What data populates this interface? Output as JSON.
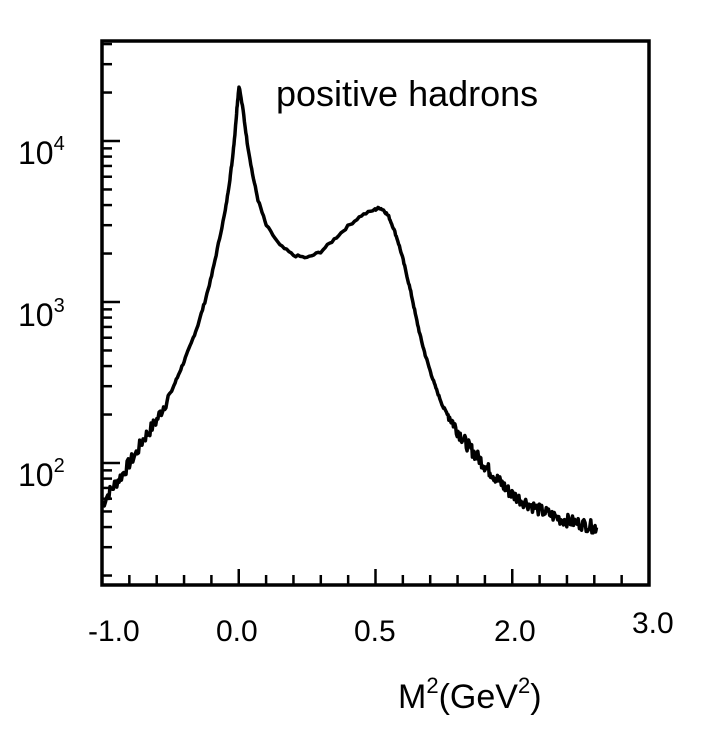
{
  "chart_data": {
    "type": "line",
    "annotation": "positive hadrons",
    "xlabel": {
      "base": "M",
      "sup1": "2",
      "mid": "(GeV",
      "sup2": "2",
      "end": ")"
    },
    "y_scale": "log",
    "ylim": [
      30,
      40000
    ],
    "x_tick_labels": [
      "-1.0",
      "0.0",
      "0.5",
      "2.0",
      "3.0"
    ],
    "y_tick_labels": [
      {
        "base": "10",
        "exp": "4",
        "value": 10000
      },
      {
        "base": "10",
        "exp": "3",
        "value": 1000
      },
      {
        "base": "10",
        "exp": "2",
        "value": 100
      }
    ],
    "series": [
      {
        "points": [
          [
            -1.0,
            55
          ],
          [
            -0.95,
            65
          ],
          [
            -0.9,
            75
          ],
          [
            -0.85,
            85
          ],
          [
            -0.8,
            100
          ],
          [
            -0.75,
            115
          ],
          [
            -0.7,
            140
          ],
          [
            -0.65,
            160
          ],
          [
            -0.6,
            185
          ],
          [
            -0.55,
            225
          ],
          [
            -0.5,
            270
          ],
          [
            -0.45,
            340
          ],
          [
            -0.4,
            430
          ],
          [
            -0.35,
            550
          ],
          [
            -0.3,
            720
          ],
          [
            -0.25,
            1000
          ],
          [
            -0.2,
            1450
          ],
          [
            -0.15,
            2300
          ],
          [
            -0.1,
            3700
          ],
          [
            -0.07,
            5500
          ],
          [
            -0.05,
            7500
          ],
          [
            -0.03,
            11000
          ],
          [
            -0.015,
            16000
          ],
          [
            0.0,
            22000
          ],
          [
            0.015,
            15500
          ],
          [
            0.03,
            9800
          ],
          [
            0.05,
            6200
          ],
          [
            0.07,
            4300
          ],
          [
            0.1,
            3000
          ],
          [
            0.15,
            2250
          ],
          [
            0.2,
            1950
          ],
          [
            0.25,
            1880
          ],
          [
            0.3,
            2050
          ],
          [
            0.35,
            2450
          ],
          [
            0.4,
            2950
          ],
          [
            0.45,
            3450
          ],
          [
            0.5,
            3750
          ],
          [
            0.55,
            3850
          ],
          [
            0.6,
            3700
          ],
          [
            0.65,
            3400
          ],
          [
            0.7,
            2900
          ],
          [
            0.75,
            2400
          ],
          [
            0.8,
            1900
          ],
          [
            0.85,
            1450
          ],
          [
            0.9,
            1100
          ],
          [
            0.95,
            800
          ],
          [
            1.0,
            600
          ],
          [
            1.05,
            470
          ],
          [
            1.1,
            380
          ],
          [
            1.15,
            310
          ],
          [
            1.2,
            260
          ],
          [
            1.25,
            220
          ],
          [
            1.3,
            200
          ],
          [
            1.35,
            180
          ],
          [
            1.4,
            160
          ],
          [
            1.45,
            145
          ],
          [
            1.5,
            132
          ],
          [
            1.55,
            122
          ],
          [
            1.6,
            113
          ],
          [
            1.65,
            105
          ],
          [
            1.7,
            97
          ],
          [
            1.75,
            90
          ],
          [
            1.8,
            84
          ],
          [
            1.85,
            78
          ],
          [
            1.9,
            73
          ],
          [
            1.95,
            68
          ],
          [
            2.0,
            64
          ],
          [
            2.05,
            60
          ],
          [
            2.1,
            57
          ],
          [
            2.15,
            54
          ],
          [
            2.2,
            51
          ],
          [
            2.25,
            49
          ],
          [
            2.3,
            47
          ],
          [
            2.35,
            45
          ],
          [
            2.4,
            44
          ],
          [
            2.45,
            43
          ],
          [
            2.5,
            42
          ],
          [
            2.55,
            41
          ],
          [
            2.6,
            40
          ],
          [
            2.62,
            40
          ]
        ]
      }
    ]
  }
}
